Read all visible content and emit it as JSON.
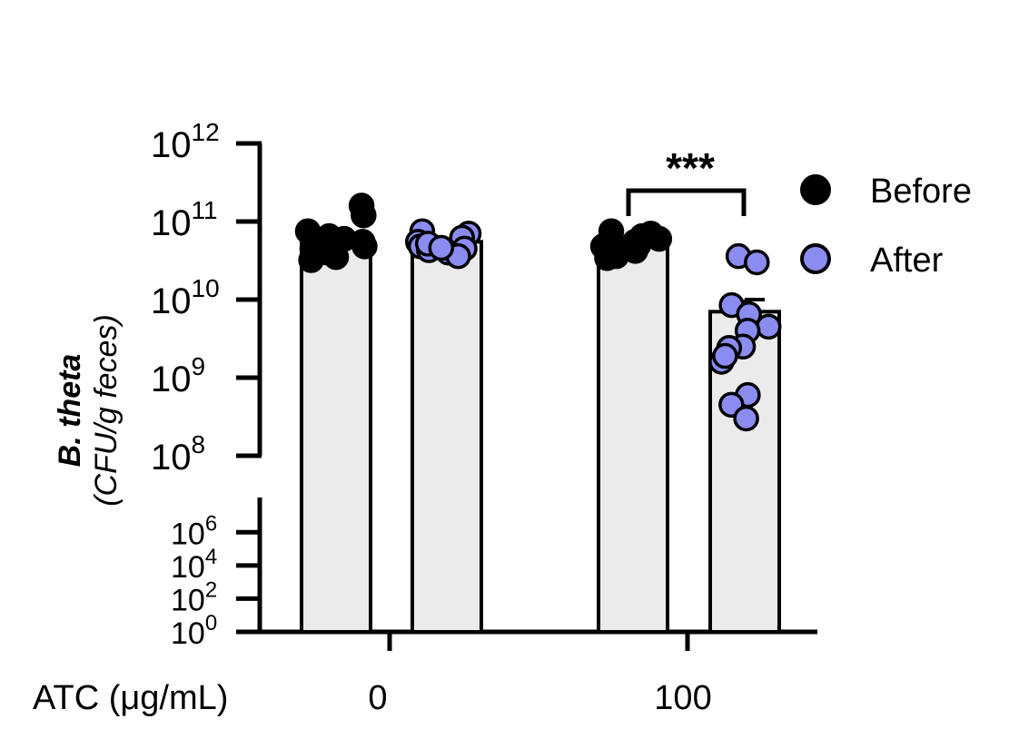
{
  "chart_data": {
    "type": "bar",
    "subtype": "scatter-dot bar with SEM, broken log y-axis",
    "y_scale": "log10",
    "ylabel": "B. theta",
    "ylabel_units": "(CFU/g feces)",
    "xlabel": "ATC (μg/mL)",
    "x_groups": [
      "0",
      "100"
    ],
    "y_ticks_upper": [
      {
        "base": "10",
        "exp": "12",
        "value": 1000000000000.0
      },
      {
        "base": "10",
        "exp": "11",
        "value": 100000000000.0
      },
      {
        "base": "10",
        "exp": "10",
        "value": 10000000000.0
      },
      {
        "base": "10",
        "exp": "9",
        "value": 1000000000.0
      },
      {
        "base": "10",
        "exp": "8",
        "value": 100000000.0
      }
    ],
    "y_ticks_lower": [
      {
        "base": "10",
        "exp": "6",
        "value": 1000000.0
      },
      {
        "base": "10",
        "exp": "4",
        "value": 10000.0
      },
      {
        "base": "10",
        "exp": "2",
        "value": 100.0
      },
      {
        "base": "10",
        "exp": "0",
        "value": 1
      }
    ],
    "ylim_upper_segment": [
      100000000.0,
      1000000000000.0
    ],
    "ylim_lower_segment": [
      1,
      10000000.0
    ],
    "legend_position": "top-right",
    "legend": [
      {
        "name": "Before",
        "color": "#000000"
      },
      {
        "name": "After",
        "color": "#8a8cf0"
      }
    ],
    "series": [
      {
        "name": "Before",
        "color": "#000000",
        "groups": [
          {
            "x": "0",
            "mean": 65000000000.0,
            "points": [
              160000000000.0,
              120000000000.0,
              75000000000.0,
              65000000000.0,
              55000000000.0,
              45000000000.0,
              40000000000.0,
              35000000000.0,
              60000000000.0,
              50000000000.0,
              32000000000.0,
              48000000000.0
            ]
          },
          {
            "x": "100",
            "mean": 50000000000.0,
            "points": [
              75000000000.0,
              70000000000.0,
              65000000000.0,
              60000000000.0,
              55000000000.0,
              50000000000.0,
              45000000000.0,
              42000000000.0,
              36000000000.0,
              34000000000.0,
              52000000000.0,
              48000000000.0
            ]
          }
        ]
      },
      {
        "name": "After",
        "color": "#8a8cf0",
        "groups": [
          {
            "x": "0",
            "mean": 55000000000.0,
            "points": [
              75000000000.0,
              70000000000.0,
              62000000000.0,
              55000000000.0,
              50000000000.0,
              48000000000.0,
              45000000000.0,
              43000000000.0,
              40000000000.0,
              36000000000.0,
              52000000000.0,
              46000000000.0
            ]
          },
          {
            "x": "100",
            "mean": 7000000000.0,
            "sem": 3000000000.0,
            "points": [
              36000000000.0,
              30000000000.0,
              8500000000.0,
              6500000000.0,
              4500000000.0,
              4000000000.0,
              2500000000.0,
              2400000000.0,
              1600000000.0,
              600000000.0,
              450000000.0,
              300000000.0,
              1900000000.0
            ]
          }
        ]
      }
    ],
    "annotations": [
      {
        "text": "***",
        "between": [
          "100 Before",
          "100 After"
        ]
      }
    ]
  }
}
